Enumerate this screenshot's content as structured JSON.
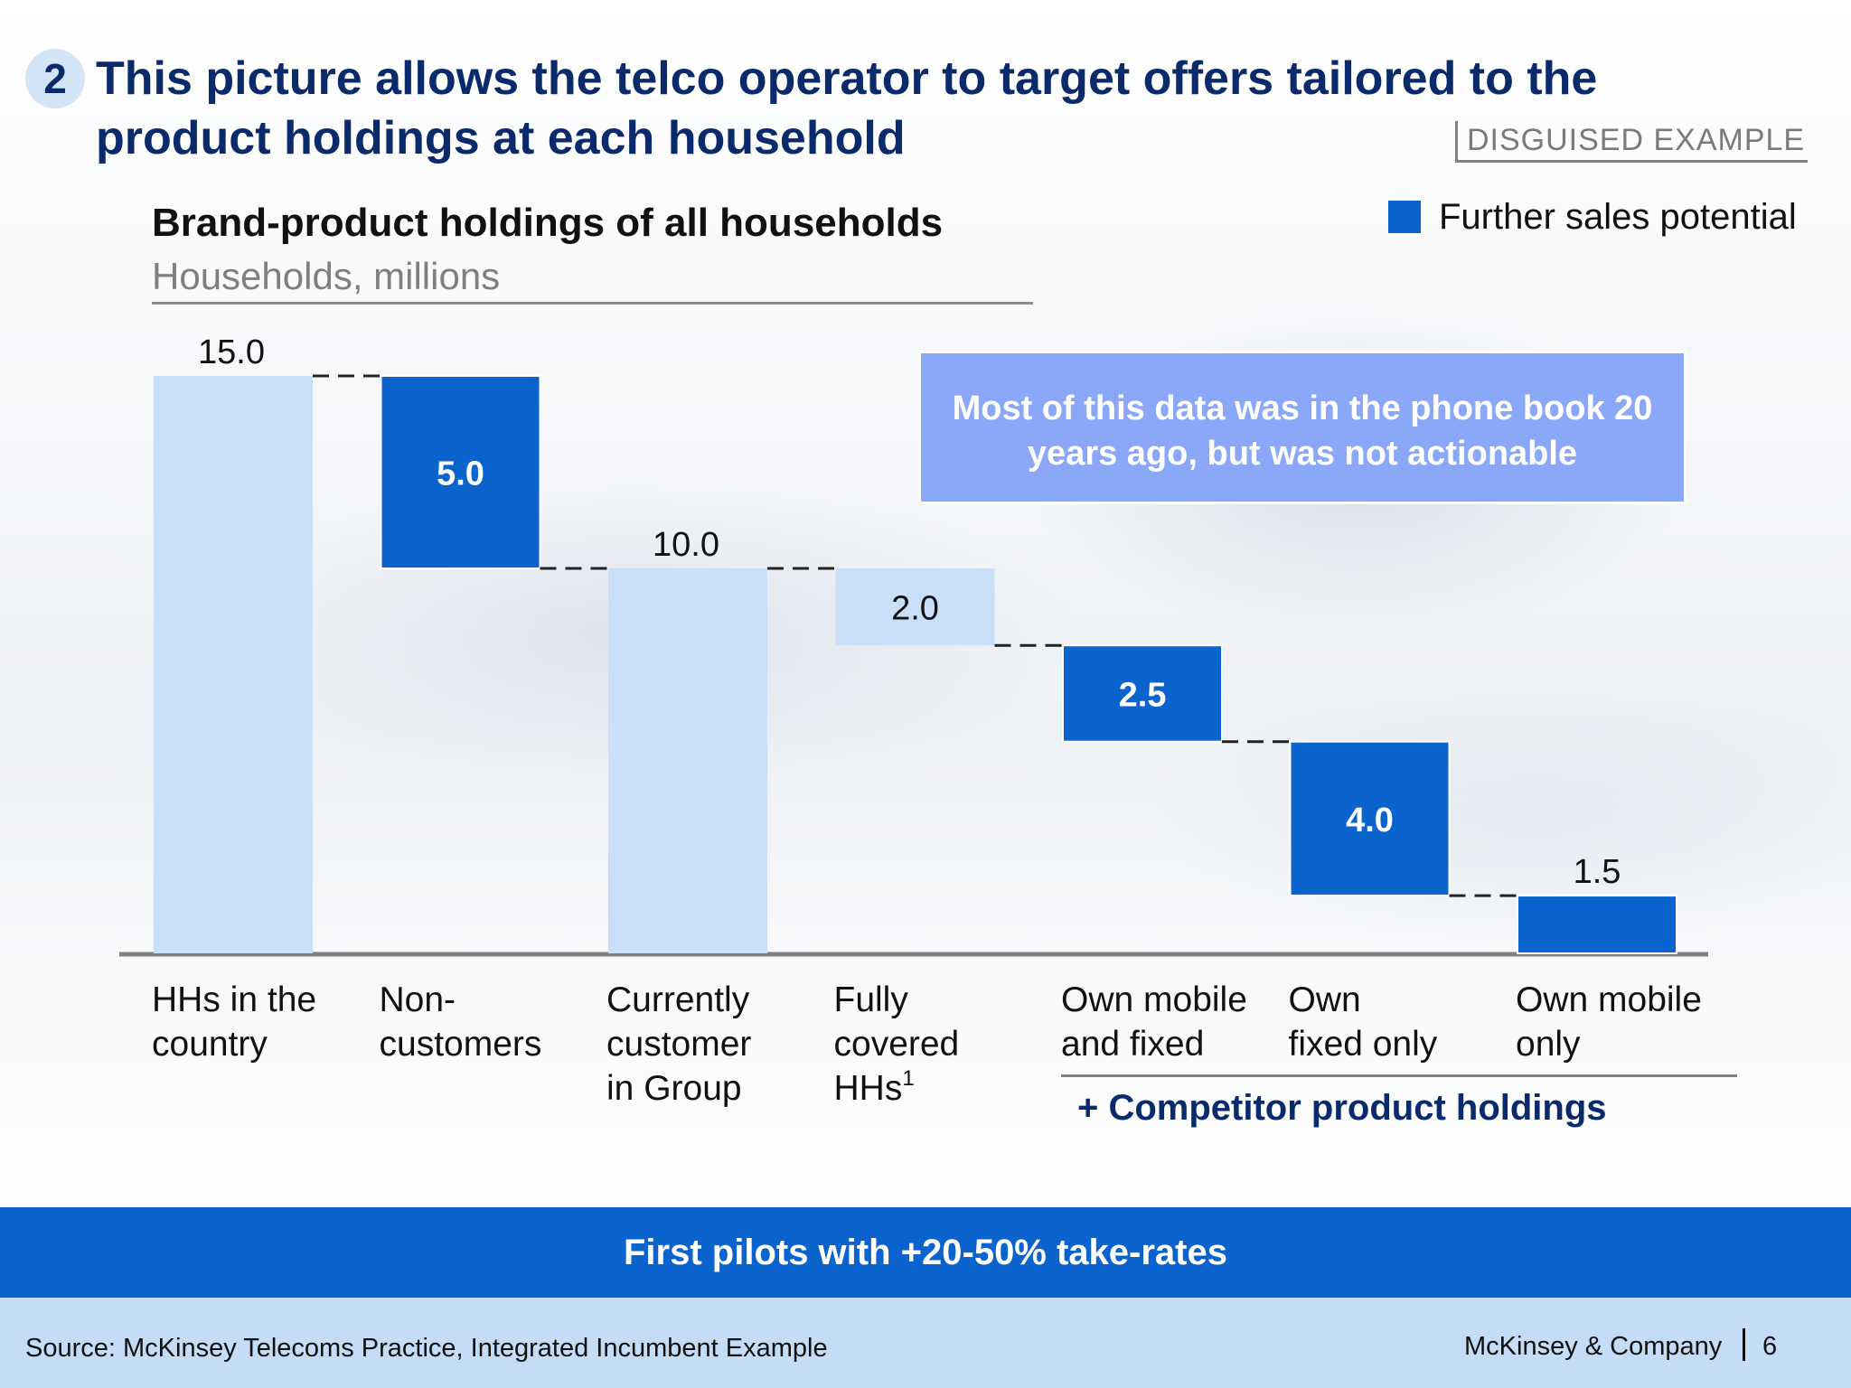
{
  "step_number": "2",
  "headline": "This picture allows the telco operator to target offers tailored to the product holdings at each household",
  "tag": "DISGUISED EXAMPLE",
  "legend": {
    "label": "Further sales potential",
    "color": "#0b63ce"
  },
  "callout": "Most of this data was in the phone book 20 years ago, but was not actionable",
  "categories": [
    {
      "text": "HHs in the\ncountry"
    },
    {
      "text": "Non-\ncustomers"
    },
    {
      "text": "Currently\ncustomer\nin Group"
    },
    {
      "text": "Fully\ncovered\nHHs",
      "sup": "1"
    },
    {
      "text": "Own mobile\nand fixed"
    },
    {
      "text": "Own\nfixed only"
    },
    {
      "text": "Own mobile\nonly"
    }
  ],
  "bracket_label": "+ Competitor product holdings",
  "banner": "First pilots with +20-50% take-rates",
  "footer": {
    "source": "Source: McKinsey Telecoms Practice, Integrated Incumbent Example",
    "brand": "McKinsey & Company",
    "page": "6"
  },
  "chart_data": {
    "type": "bar",
    "subtype": "waterfall",
    "title": "Brand-product holdings of all households",
    "ylabel": "Households, millions",
    "ylim": [
      0,
      15
    ],
    "categories": [
      "HHs in the country",
      "Non-customers",
      "Currently customer in Group",
      "Fully covered HHs1",
      "Own mobile and fixed",
      "Own fixed only",
      "Own mobile only"
    ],
    "values": [
      15.0,
      5.0,
      10.0,
      2.0,
      2.5,
      4.0,
      1.5
    ],
    "labels": [
      "15.0",
      "5.0",
      "10.0",
      "2.0",
      "2.5",
      "4.0",
      "1.5"
    ],
    "kinds": [
      "total",
      "decrease",
      "total",
      "decrease",
      "decrease",
      "decrease",
      "decrease"
    ],
    "highlighted": [
      false,
      true,
      false,
      false,
      true,
      true,
      true
    ],
    "colors": {
      "base": "#c9dff8",
      "highlight": "#0b63ce"
    }
  }
}
